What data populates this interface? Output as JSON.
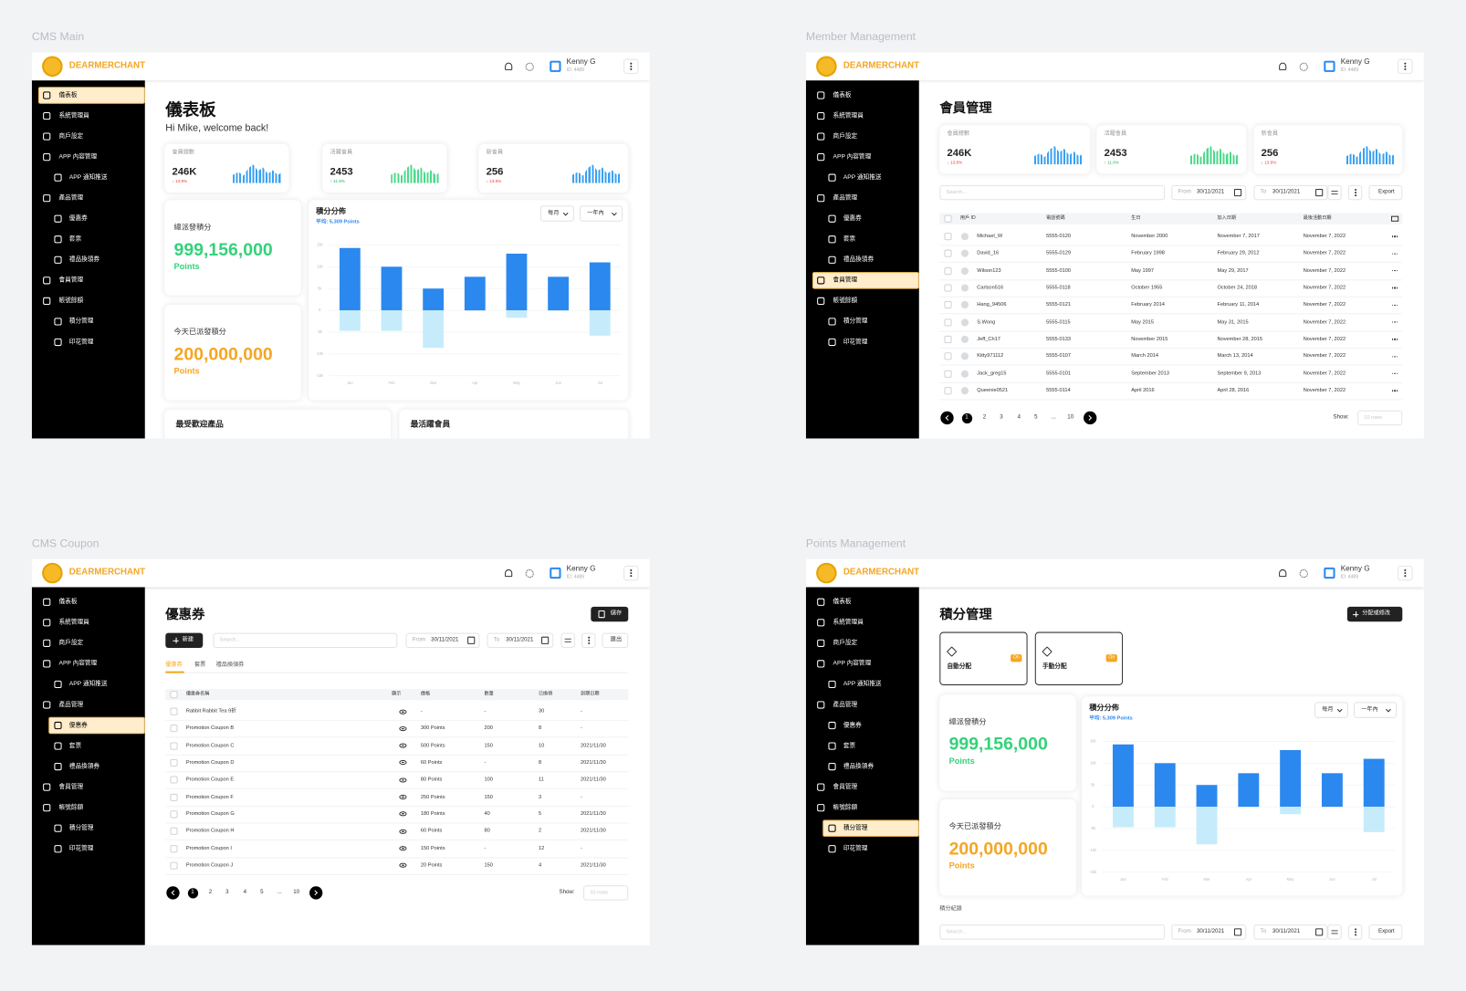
{
  "labels": [
    "CMS Main",
    "Member Management",
    "CMS Coupon",
    "Points Management"
  ],
  "header": {
    "brand": "DEARMERCHANT",
    "user": "Kenny G",
    "user_id": "ID: 4489"
  },
  "menu": [
    {
      "label": "儀表板",
      "sub": false
    },
    {
      "label": "系統管理員",
      "sub": false
    },
    {
      "label": "商戶設定",
      "sub": false
    },
    {
      "label": "APP 內容管理",
      "sub": false
    },
    {
      "label": "APP 通知推送",
      "sub": true
    },
    {
      "label": "產品管理",
      "sub": false
    },
    {
      "label": "優惠券",
      "sub": true
    },
    {
      "label": "套票",
      "sub": true
    },
    {
      "label": "禮品換領券",
      "sub": true
    },
    {
      "label": "會員管理",
      "sub": false
    },
    {
      "label": "帳號餘額",
      "sub": false
    },
    {
      "label": "積分管理",
      "sub": true
    },
    {
      "label": "印花管理",
      "sub": true
    }
  ],
  "stats": [
    {
      "label": "會員總數",
      "value": "246K",
      "change": "↓ 13.8%",
      "trend": "down"
    },
    {
      "label": "活躍會員",
      "value": "2453",
      "change": "↑ 11.8%",
      "trend": "up"
    },
    {
      "label": "新會員",
      "value": "256",
      "change": "↓ 13.6%",
      "trend": "down"
    }
  ],
  "points": {
    "total_label": "總派發積分",
    "total": "999,156,000",
    "today_label": "今天已派發積分",
    "today": "200,000,000",
    "unit": "Points"
  },
  "filters": {
    "search": "Search...",
    "from": "From",
    "from_date": "30/11/2021",
    "to": "To",
    "to_date": "30/11/2021"
  },
  "pagination": {
    "pages": [
      "1",
      "2",
      "3",
      "4",
      "5",
      "...",
      "10"
    ],
    "show": "Show:",
    "rows": "10 rows"
  },
  "chart_data": {
    "type": "bar",
    "title": "積分分佈",
    "subtitle": "平均: 5,309 Points",
    "filters": [
      "每月",
      "一年內"
    ],
    "categories": [
      "Jan",
      "Feb",
      "Mar",
      "Apr",
      "May",
      "Jun",
      "Jul"
    ],
    "series": [
      {
        "color": "#2b88ef",
        "values": [
          14300,
          10000,
          5000,
          7700,
          13000,
          7700,
          11000
        ]
      },
      {
        "color": "#c6ecfb",
        "values": [
          -4700,
          -4700,
          -8600,
          0,
          -1700,
          0,
          -5800
        ]
      }
    ],
    "ylim": [
      -15000,
      15000
    ],
    "yticks": [
      {
        "value": -15000,
        "label": "-15k"
      },
      {
        "value": -10000,
        "label": "-10k"
      },
      {
        "value": -5000,
        "label": "-5k"
      },
      0,
      {
        "value": 5000,
        "label": "5k"
      },
      {
        "value": 10000,
        "label": "10k"
      },
      {
        "value": 15000,
        "label": "15k"
      }
    ],
    "grid": true
  },
  "dashboard": {
    "title": "儀表板",
    "greeting": "Hi Mike, welcome back!",
    "popular": "最受歡迎產品",
    "active": "最活躍會員",
    "active_menu": 0
  },
  "members": {
    "title": "會員管理",
    "export": "Export",
    "active_menu": 9,
    "columns": [
      "用戶 ID",
      "電話號碼",
      "生日",
      "加入日期",
      "最後活動日期"
    ],
    "rows": [
      [
        "Michael_W",
        "5555-0120",
        "November 2000",
        "November 7, 2017",
        "November 7, 2022"
      ],
      [
        "David_16",
        "5555-0129",
        "February 1998",
        "February 29, 2012",
        "November 7, 2022"
      ],
      [
        "Wilson123",
        "5555-0100",
        "May 1997",
        "May 29, 2017",
        "November 7, 2022"
      ],
      [
        "Carlson516",
        "5555-0118",
        "October 1955",
        "October 24, 2018",
        "November 7, 2022"
      ],
      [
        "Hang_94506",
        "5555-0121",
        "February 2014",
        "February 11, 2014",
        "November 7, 2022"
      ],
      [
        "S.Wong",
        "5555-0115",
        "May 2015",
        "May 31, 2015",
        "November 7, 2022"
      ],
      [
        "Jeff_Ch17",
        "5555-0133",
        "November 2015",
        "November 28, 2015",
        "November 7, 2022"
      ],
      [
        "Kitty971112",
        "5555-0107",
        "March 2014",
        "March 13, 2014",
        "November 7, 2022"
      ],
      [
        "Jack_greg15",
        "5555-0101",
        "September 2013",
        "September 9, 2013",
        "November 7, 2022"
      ],
      [
        "Queenie0521",
        "5555-0114",
        "April 2016",
        "April 28, 2016",
        "November 7, 2022"
      ]
    ]
  },
  "coupons": {
    "title": "優惠券",
    "save": "儲存",
    "new": "新建",
    "export": "匯出",
    "active_menu": 6,
    "tabs": [
      "優惠券",
      "套票",
      "禮品換領券"
    ],
    "columns": [
      "優惠券名稱",
      "顯示",
      "價格",
      "數量",
      "已換領",
      "到期日期"
    ],
    "rows": [
      [
        "Rabbit Rabbit Tea 9折",
        "-",
        "-",
        "30",
        "-"
      ],
      [
        "Promotion Coupon B",
        "300 Points",
        "200",
        "8",
        "-"
      ],
      [
        "Promotion Coupon C",
        "500 Points",
        "150",
        "10",
        "2021/11/30"
      ],
      [
        "Promotion Coupon D",
        "60 Points",
        "-",
        "8",
        "2021/11/30"
      ],
      [
        "Promotion Coupon E",
        "80 Points",
        "100",
        "11",
        "2021/11/30"
      ],
      [
        "Promotion Coupon F",
        "250 Points",
        "150",
        "3",
        "-"
      ],
      [
        "Promotion Coupon G",
        "180 Points",
        "40",
        "5",
        "2021/11/30"
      ],
      [
        "Promotion Coupon H",
        "60 Points",
        "80",
        "2",
        "2021/11/30"
      ],
      [
        "Promotion Coupon I",
        "150 Points",
        "-",
        "12",
        "-"
      ],
      [
        "Promotion Coupon J",
        "20 Points",
        "150",
        "4",
        "2021/11/30"
      ]
    ]
  },
  "points_mgmt": {
    "title": "積分管理",
    "assign": "分配或修改",
    "active_menu": 11,
    "modes": [
      {
        "label": "自動分配",
        "status": "On"
      },
      {
        "label": "手動分配",
        "status": "On"
      }
    ],
    "records": "積分紀錄",
    "export": "Export"
  }
}
